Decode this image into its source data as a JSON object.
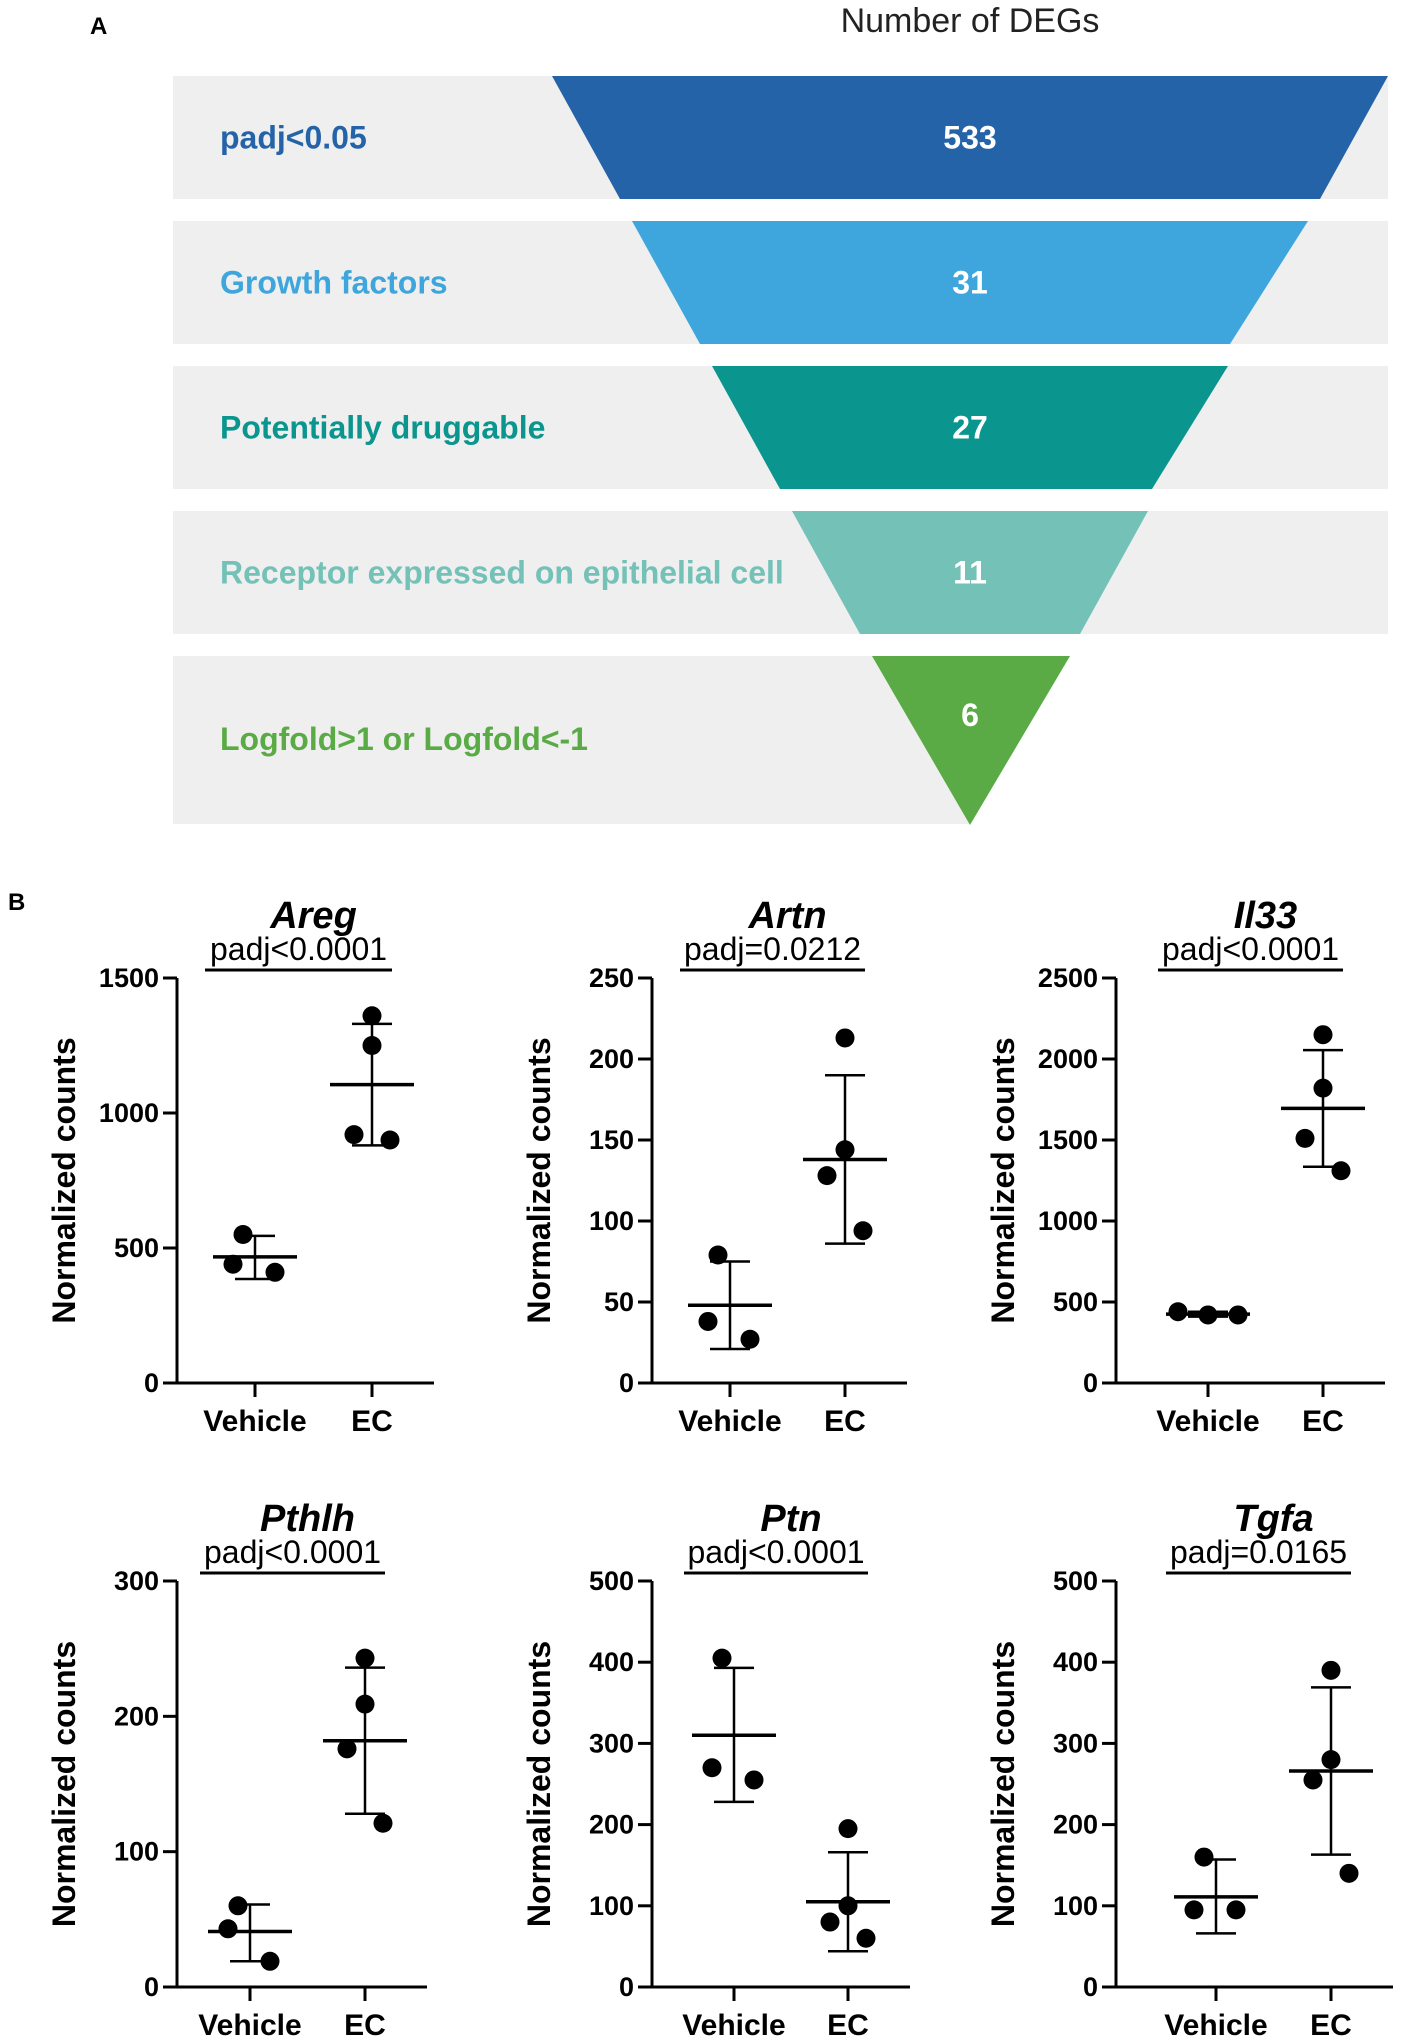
{
  "panel_a": {
    "letter": "A",
    "title": "Number of DEGs",
    "bands": [
      {
        "label": "padj<0.05",
        "count": "533",
        "color": "#2563a8",
        "label_color": "#2563a8"
      },
      {
        "label": "Growth factors",
        "count": "31",
        "color": "#3ea6dc",
        "label_color": "#3ea6dc"
      },
      {
        "label": "Potentially druggable",
        "count": "27",
        "color": "#0a958e",
        "label_color": "#0a958e"
      },
      {
        "label": "Receptor expressed on epithelial cell",
        "count": "11",
        "color": "#74c1b8",
        "label_color": "#74c1b8"
      },
      {
        "label": "Logfold>1 or Logfold<-1",
        "count": "6",
        "color": "#5aab46",
        "label_color": "#5aab46"
      }
    ],
    "band_background": "#efefef"
  },
  "panel_b": {
    "letter": "B"
  },
  "chart_data": [
    {
      "type": "scatter",
      "title": "Areg",
      "ylabel": "Normalized counts",
      "categories": [
        "Vehicle",
        "EC"
      ],
      "ylim": [
        0,
        1500
      ],
      "yticks": [
        0,
        500,
        1000,
        1500
      ],
      "stat": "padj<0.0001",
      "series": [
        {
          "name": "Vehicle",
          "points": [
            550,
            440,
            410
          ],
          "mean": 467,
          "sd_low": 385,
          "sd_high": 545
        },
        {
          "name": "EC",
          "points": [
            1360,
            1250,
            920,
            900
          ],
          "mean": 1105,
          "sd_low": 880,
          "sd_high": 1330
        }
      ]
    },
    {
      "type": "scatter",
      "title": "Artn",
      "ylabel": "Normalized counts",
      "categories": [
        "Vehicle",
        "EC"
      ],
      "ylim": [
        0,
        250
      ],
      "yticks": [
        0,
        50,
        100,
        150,
        200,
        250
      ],
      "stat": "padj=0.0212",
      "series": [
        {
          "name": "Vehicle",
          "points": [
            79,
            38,
            27
          ],
          "mean": 48,
          "sd_low": 21,
          "sd_high": 75
        },
        {
          "name": "EC",
          "points": [
            213,
            144,
            128,
            94
          ],
          "mean": 138,
          "sd_low": 86,
          "sd_high": 190
        }
      ]
    },
    {
      "type": "scatter",
      "title": "Il33",
      "ylabel": "Normalized counts",
      "categories": [
        "Vehicle",
        "EC"
      ],
      "ylim": [
        0,
        2500
      ],
      "yticks": [
        0,
        500,
        1000,
        1500,
        2000,
        2500
      ],
      "stat": "padj<0.0001",
      "series": [
        {
          "name": "Vehicle",
          "points": [
            440,
            420,
            420
          ],
          "mean": 425,
          "sd_low": 410,
          "sd_high": 440
        },
        {
          "name": "EC",
          "points": [
            2150,
            1820,
            1510,
            1310
          ],
          "mean": 1695,
          "sd_low": 1335,
          "sd_high": 2055
        }
      ]
    },
    {
      "type": "scatter",
      "title": "Pthlh",
      "ylabel": "Normalized counts",
      "categories": [
        "Vehicle",
        "EC"
      ],
      "ylim": [
        0,
        300
      ],
      "yticks": [
        0,
        100,
        200,
        300
      ],
      "stat": "padj<0.0001",
      "series": [
        {
          "name": "Vehicle",
          "points": [
            60,
            43,
            19
          ],
          "mean": 41,
          "sd_low": 19,
          "sd_high": 61
        },
        {
          "name": "EC",
          "points": [
            243,
            209,
            176,
            121
          ],
          "mean": 182,
          "sd_low": 128,
          "sd_high": 236
        }
      ]
    },
    {
      "type": "scatter",
      "title": "Ptn",
      "ylabel": "Normalized counts",
      "categories": [
        "Vehicle",
        "EC"
      ],
      "ylim": [
        0,
        500
      ],
      "yticks": [
        0,
        100,
        200,
        300,
        400,
        500
      ],
      "stat": "padj<0.0001",
      "series": [
        {
          "name": "Vehicle",
          "points": [
            405,
            270,
            255
          ],
          "mean": 310,
          "sd_low": 228,
          "sd_high": 393
        },
        {
          "name": "EC",
          "points": [
            195,
            100,
            80,
            60
          ],
          "mean": 105,
          "sd_low": 44,
          "sd_high": 166
        }
      ]
    },
    {
      "type": "scatter",
      "title": "Tgfa",
      "ylabel": "Normalized counts",
      "categories": [
        "Vehicle",
        "EC"
      ],
      "ylim": [
        0,
        500
      ],
      "yticks": [
        0,
        100,
        200,
        300,
        400,
        500
      ],
      "stat": "padj=0.0165",
      "series": [
        {
          "name": "Vehicle",
          "points": [
            160,
            95,
            95
          ],
          "mean": 111,
          "sd_low": 66,
          "sd_high": 157
        },
        {
          "name": "EC",
          "points": [
            390,
            280,
            255,
            140
          ],
          "mean": 266,
          "sd_low": 163,
          "sd_high": 369
        }
      ]
    }
  ]
}
